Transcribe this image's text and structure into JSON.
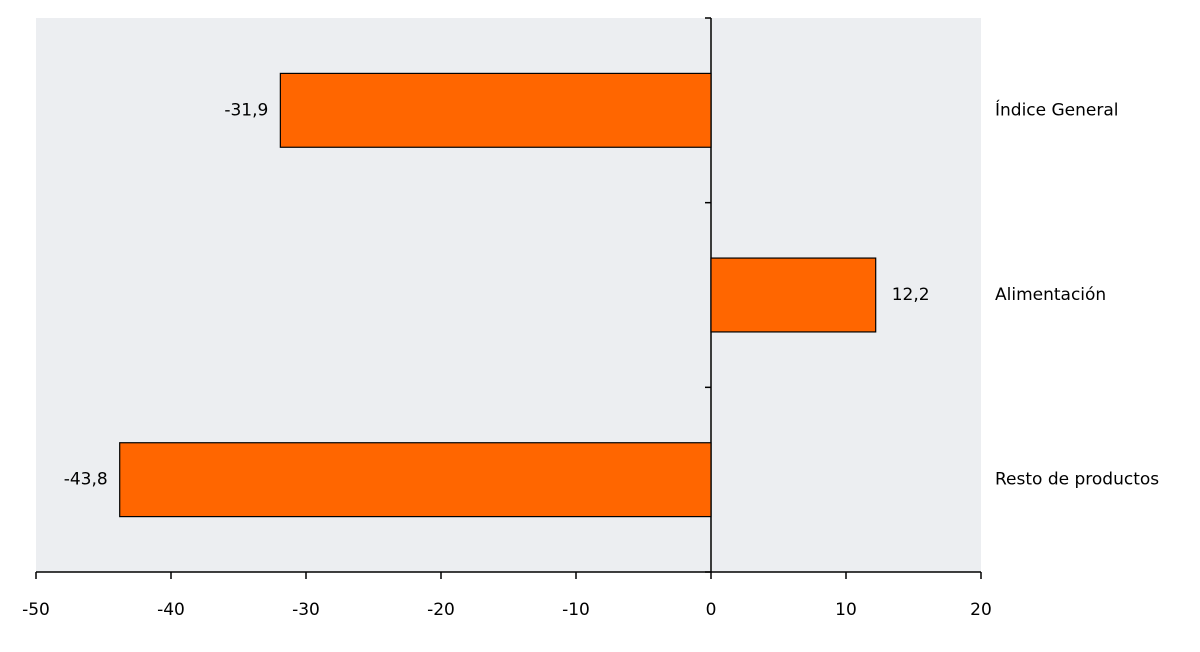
{
  "chart_data": {
    "type": "barh",
    "categories": [
      "Índice General",
      "Alimentación",
      "Resto de productos"
    ],
    "values": [
      -31.9,
      12.2,
      -43.8
    ],
    "value_labels": [
      "-31,9",
      "12,2",
      "-43,8"
    ],
    "color": "#ff6600",
    "xlim": [
      -50,
      20
    ],
    "xticks": [
      -50,
      -40,
      -30,
      -20,
      -10,
      0,
      10,
      20
    ]
  }
}
